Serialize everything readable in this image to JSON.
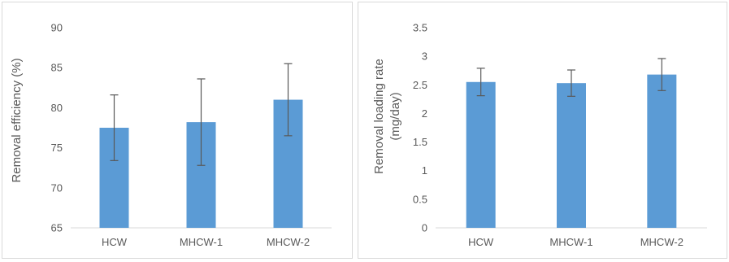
{
  "chart_data": [
    {
      "type": "bar",
      "categories": [
        "HCW",
        "MHCW-1",
        "MHCW-2"
      ],
      "series": [
        {
          "values": [
            77.5,
            78.2,
            81.0
          ],
          "error": [
            4.1,
            5.4,
            4.5
          ]
        }
      ],
      "ylabel": "Removal efficiency (%)",
      "xlabel": "",
      "ylim": [
        65,
        90
      ],
      "yticks": [
        "65",
        "70",
        "75",
        "80",
        "85",
        "90"
      ],
      "grid": false,
      "bar_color": "#5b9bd5"
    },
    {
      "type": "bar",
      "categories": [
        "HCW",
        "MHCW-1",
        "MHCW-2"
      ],
      "series": [
        {
          "values": [
            2.55,
            2.53,
            2.68
          ],
          "error": [
            0.24,
            0.23,
            0.28
          ]
        }
      ],
      "ylabel_lines": [
        "Removal loading rate",
        "(mg/day)"
      ],
      "xlabel": "",
      "ylim": [
        0,
        3.5
      ],
      "yticks": [
        "0",
        "0.5",
        "1",
        "1.5",
        "2",
        "2.5",
        "3",
        "3.5"
      ],
      "grid": false,
      "bar_color": "#5b9bd5"
    }
  ]
}
